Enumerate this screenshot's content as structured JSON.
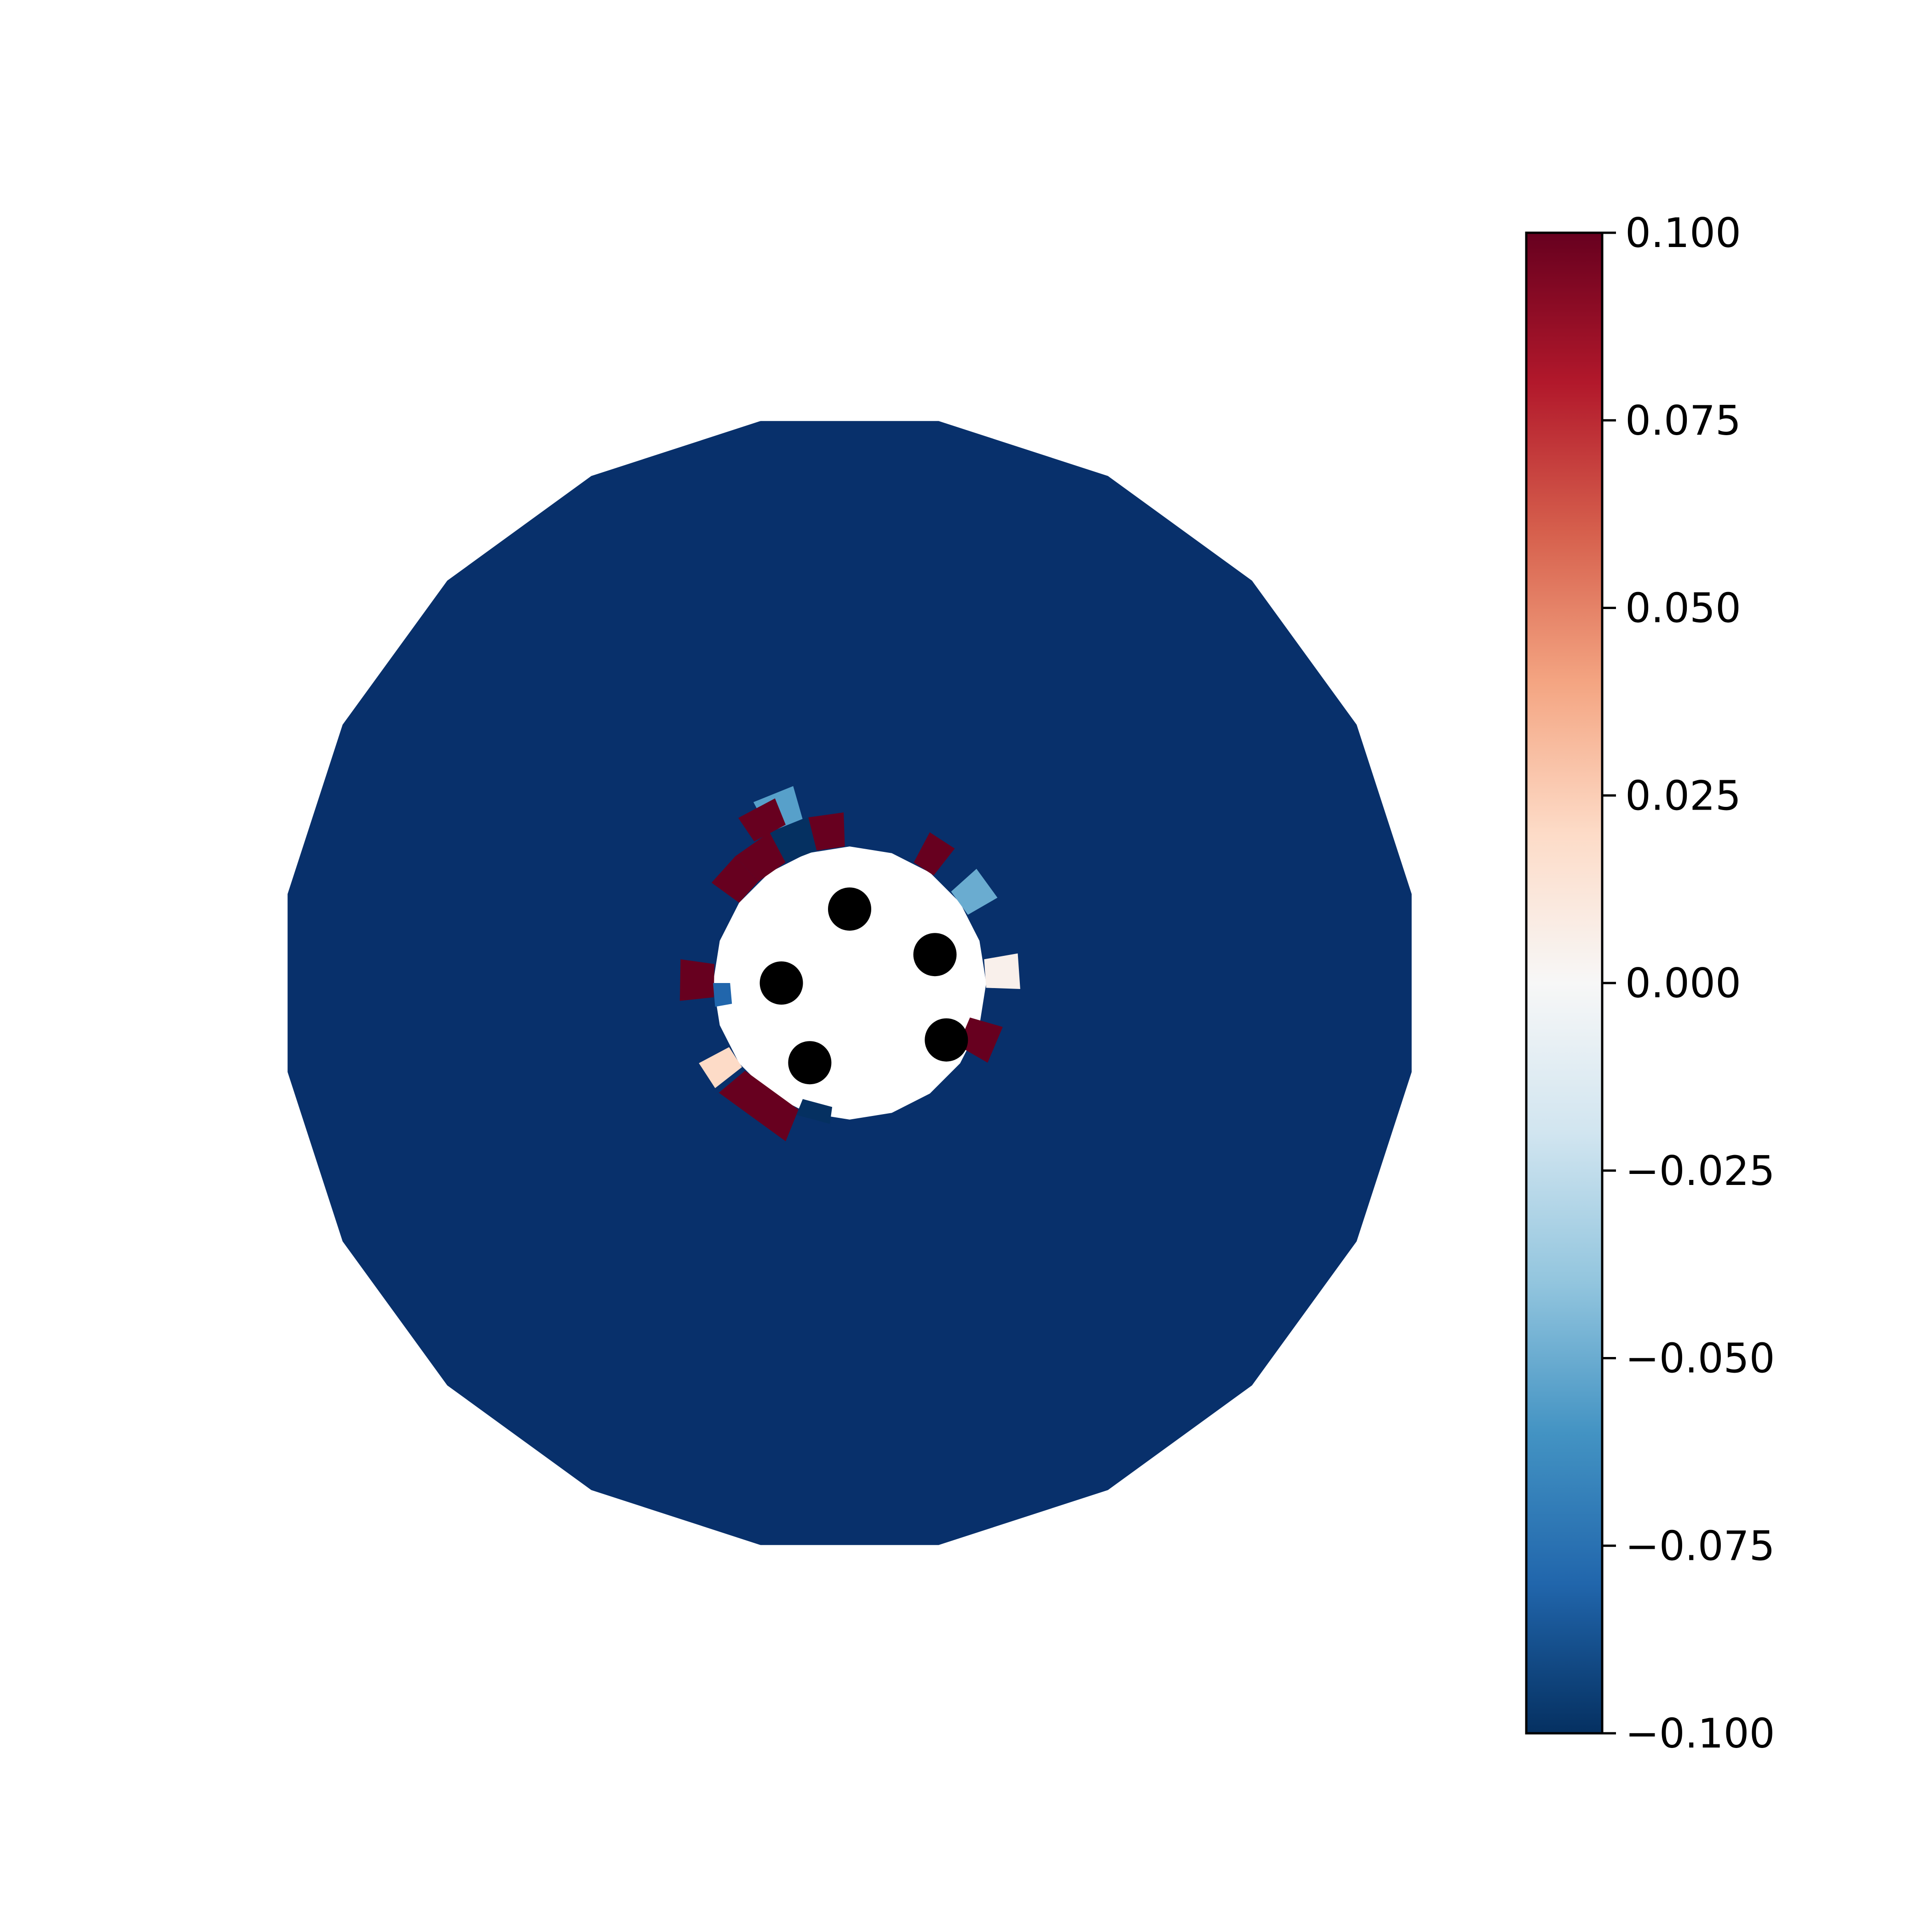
{
  "chart_data": {
    "type": "heatmap",
    "title": "",
    "xlabel": "",
    "ylabel": "",
    "grid": false,
    "axes_visible": false,
    "aspect": "equal",
    "domain": {
      "shape": "annulus (polygonal, 20-sided outer boundary)",
      "outer_radius": 1.0,
      "inner_radius": 0.24,
      "fill_value": -0.1,
      "fill_color": "#08306b"
    },
    "xlim": [
      -1.0,
      1.0
    ],
    "ylim": [
      -1.0,
      1.0
    ],
    "colorbar": {
      "colormap": "RdBu_r",
      "location": "right",
      "vmin": -0.1,
      "vmax": 0.1,
      "ticks": [
        0.1,
        0.075,
        0.05,
        0.025,
        0.0,
        -0.025,
        -0.05,
        -0.075,
        -0.1
      ],
      "tick_labels": [
        "0.100",
        "0.075",
        "0.050",
        "0.025",
        "0.000",
        "−0.025",
        "−0.050",
        "−0.075",
        "−0.100"
      ],
      "colors": [
        "#67001f",
        "#b2182b",
        "#d6604d",
        "#f4a582",
        "#fddbc7",
        "#f7f7f7",
        "#d1e5f0",
        "#92c5de",
        "#4393c3",
        "#2166ac",
        "#053061"
      ]
    },
    "cells": [
      {
        "angle_from_deg": 92,
        "angle_to_deg": 104,
        "r_inner": 0.24,
        "r_outer": 0.3,
        "value": 0.1
      },
      {
        "angle_from_deg": 104,
        "angle_to_deg": 118,
        "r_inner": 0.24,
        "r_outer": 0.3,
        "value": -0.1
      },
      {
        "angle_from_deg": 106,
        "angle_to_deg": 118,
        "r_inner": 0.3,
        "r_outer": 0.36,
        "value": -0.055
      },
      {
        "angle_from_deg": 118,
        "angle_to_deg": 132,
        "r_inner": 0.24,
        "r_outer": 0.3,
        "value": 0.1
      },
      {
        "angle_from_deg": 132,
        "angle_to_deg": 144,
        "r_inner": 0.24,
        "r_outer": 0.3,
        "value": 0.1
      },
      {
        "angle_from_deg": 112,
        "angle_to_deg": 124,
        "r_inner": 0.3,
        "r_outer": 0.35,
        "value": 0.1
      },
      {
        "angle_from_deg": 52,
        "angle_to_deg": 62,
        "r_inner": 0.24,
        "r_outer": 0.3,
        "value": 0.1
      },
      {
        "angle_from_deg": 30,
        "angle_to_deg": 42,
        "r_inner": 0.24,
        "r_outer": 0.3,
        "value": -0.05
      },
      {
        "angle_from_deg": -2,
        "angle_to_deg": 10,
        "r_inner": 0.24,
        "r_outer": 0.3,
        "value": 0.005
      },
      {
        "angle_from_deg": 172,
        "angle_to_deg": 186,
        "r_inner": 0.24,
        "r_outer": 0.3,
        "value": 0.1
      },
      {
        "angle_from_deg": 180,
        "angle_to_deg": 190,
        "r_inner": 0.21,
        "r_outer": 0.24,
        "value": -0.08
      },
      {
        "angle_from_deg": 208,
        "angle_to_deg": 218,
        "r_inner": 0.24,
        "r_outer": 0.3,
        "value": 0.02
      },
      {
        "angle_from_deg": 220,
        "angle_to_deg": 248,
        "r_inner": 0.24,
        "r_outer": 0.3,
        "value": 0.1
      },
      {
        "angle_from_deg": 248,
        "angle_to_deg": 262,
        "r_inner": 0.22,
        "r_outer": 0.25,
        "value": -0.1
      },
      {
        "angle_from_deg": 330,
        "angle_to_deg": 344,
        "r_inner": 0.22,
        "r_outer": 0.28,
        "value": 0.1
      }
    ],
    "points": [
      {
        "x": 0.0,
        "y": 0.13
      },
      {
        "x": 0.15,
        "y": 0.05
      },
      {
        "x": -0.12,
        "y": 0.0
      },
      {
        "x": 0.17,
        "y": -0.1
      },
      {
        "x": -0.07,
        "y": -0.14
      }
    ],
    "point_color": "#000000"
  }
}
